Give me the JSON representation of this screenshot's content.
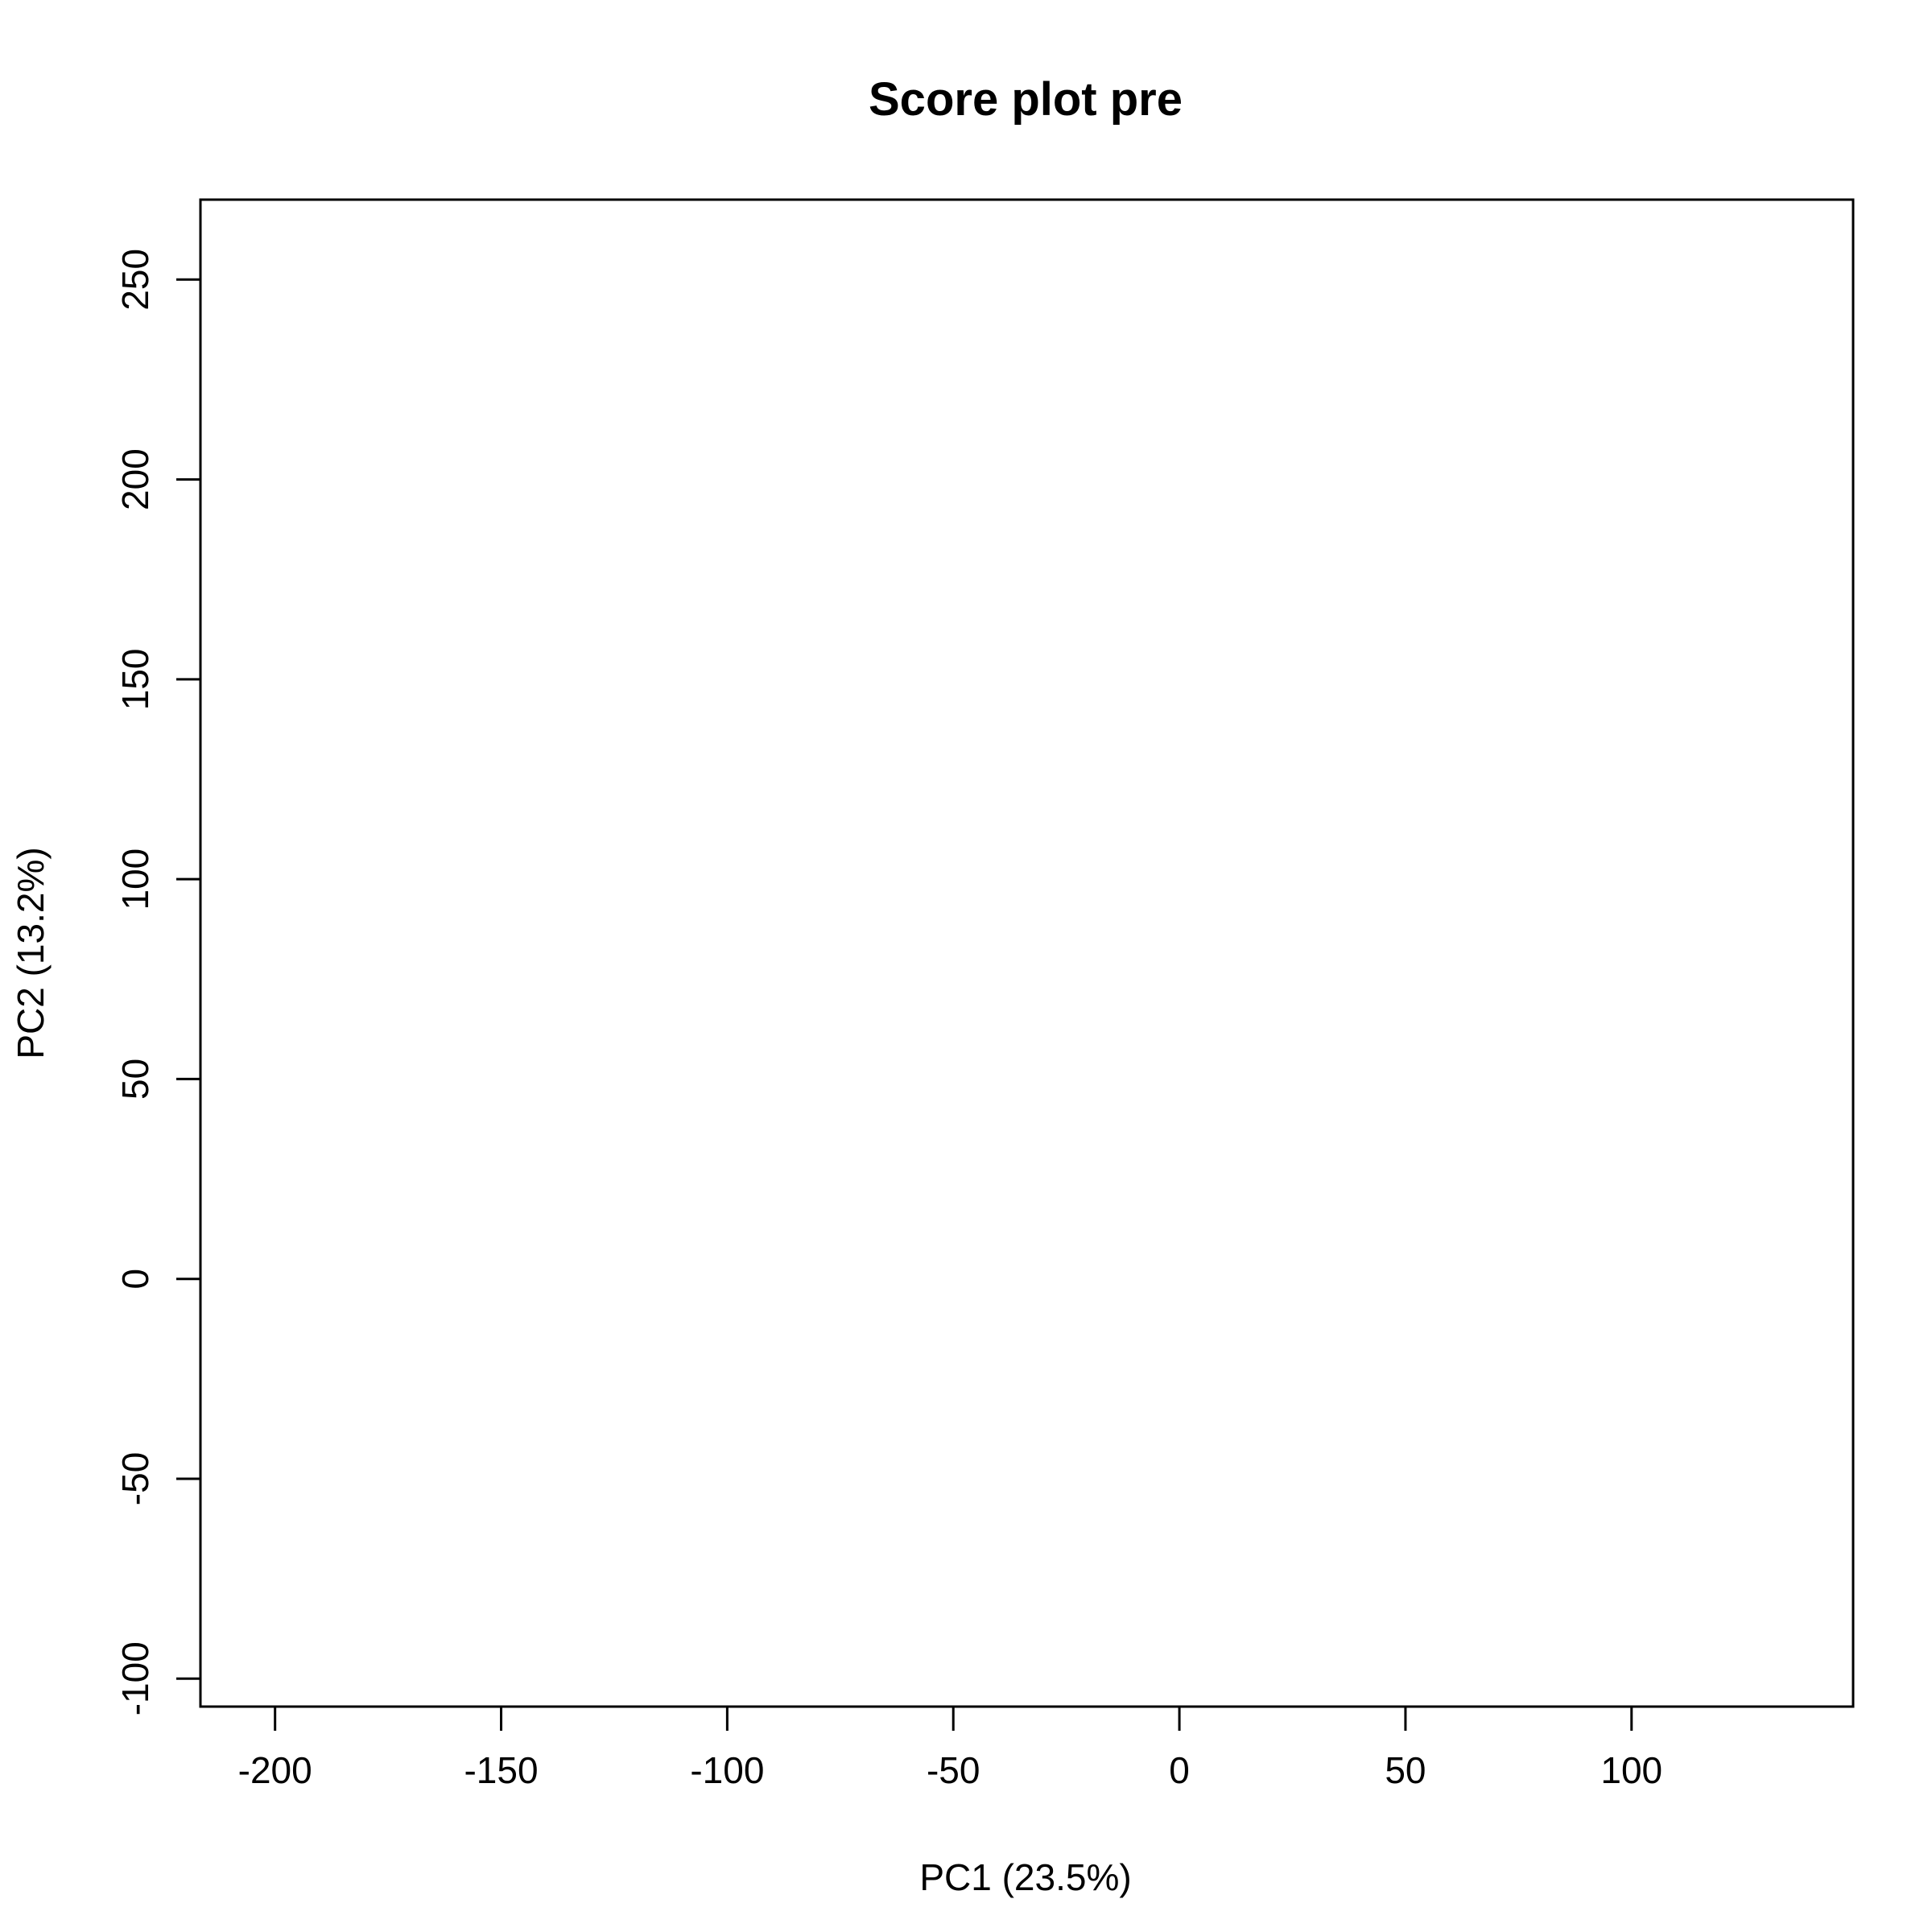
{
  "chart_data": {
    "type": "scatter",
    "title": "Score plot pre",
    "xlabel": "PC1 (23.5%)",
    "ylabel": "PC2 (13.2%)",
    "xlim": [
      -216.5,
      149
    ],
    "ylim": [
      -107,
      270
    ],
    "x_ticks": [
      -200,
      -150,
      -100,
      -50,
      0,
      50,
      100
    ],
    "x_tick_labels": [
      "-200",
      "-150",
      "-100",
      "-50",
      "0",
      "50",
      "100"
    ],
    "y_ticks": [
      -100,
      -50,
      0,
      50,
      100,
      150,
      200,
      250
    ],
    "y_tick_labels": [
      "-100",
      "-50",
      "0",
      "50",
      "100",
      "150",
      "200",
      "250"
    ],
    "series": [],
    "grid": false,
    "legend": "none"
  }
}
